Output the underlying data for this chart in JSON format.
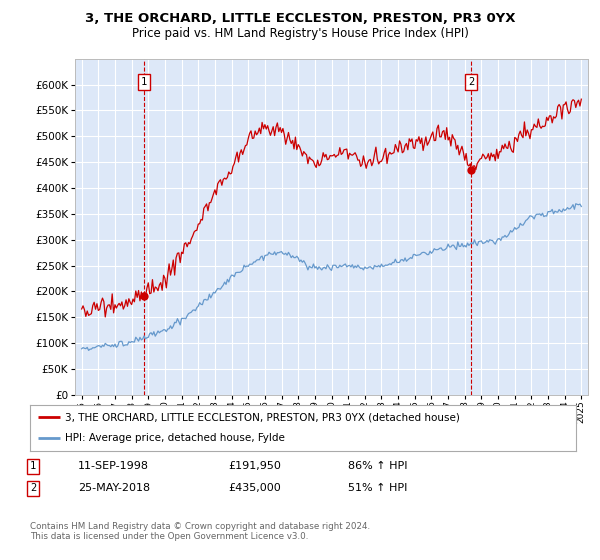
{
  "title": "3, THE ORCHARD, LITTLE ECCLESTON, PRESTON, PR3 0YX",
  "subtitle": "Price paid vs. HM Land Registry's House Price Index (HPI)",
  "background_color": "#ffffff",
  "plot_bg_color": "#dde8f8",
  "grid_color": "#ffffff",
  "line1_color": "#cc0000",
  "line2_color": "#6699cc",
  "legend1": "3, THE ORCHARD, LITTLE ECCLESTON, PRESTON, PR3 0YX (detached house)",
  "legend2": "HPI: Average price, detached house, Fylde",
  "footnote": "Contains HM Land Registry data © Crown copyright and database right 2024.\nThis data is licensed under the Open Government Licence v3.0.",
  "marker1": {
    "date_idx": 1998.75,
    "value": 191950,
    "label": "1",
    "date_str": "11-SEP-1998",
    "price_str": "£191,950",
    "hpi_str": "86% ↑ HPI"
  },
  "marker2": {
    "date_idx": 2018.38,
    "value": 435000,
    "label": "2",
    "date_str": "25-MAY-2018",
    "price_str": "£435,000",
    "hpi_str": "51% ↑ HPI"
  },
  "ylim": [
    0,
    650000
  ],
  "xlim": [
    1994.6,
    2025.4
  ],
  "yticks": [
    0,
    50000,
    100000,
    150000,
    200000,
    250000,
    300000,
    350000,
    400000,
    450000,
    500000,
    550000,
    600000
  ],
  "xticks": [
    1995,
    1996,
    1997,
    1998,
    1999,
    2000,
    2001,
    2002,
    2003,
    2004,
    2005,
    2006,
    2007,
    2008,
    2009,
    2010,
    2011,
    2012,
    2013,
    2014,
    2015,
    2016,
    2017,
    2018,
    2019,
    2020,
    2021,
    2022,
    2023,
    2024,
    2025
  ],
  "hpi_keypoints_t": [
    1995,
    1996,
    1997,
    1998,
    1999,
    2000,
    2001,
    2002,
    2003,
    2004,
    2005,
    2006,
    2007,
    2008,
    2009,
    2010,
    2011,
    2012,
    2013,
    2014,
    2015,
    2016,
    2017,
    2018,
    2019,
    2020,
    2021,
    2022,
    2023,
    2024,
    2025
  ],
  "hpi_keypoints_v": [
    90000,
    93000,
    97000,
    103000,
    112000,
    125000,
    145000,
    170000,
    200000,
    225000,
    250000,
    270000,
    278000,
    262000,
    245000,
    248000,
    250000,
    245000,
    248000,
    258000,
    268000,
    278000,
    285000,
    290000,
    295000,
    298000,
    320000,
    345000,
    352000,
    358000,
    368000
  ],
  "red_keypoints_t": [
    1995,
    1996,
    1997,
    1998,
    1998.75,
    1999,
    2000,
    2001,
    2002,
    2003,
    2004,
    2005,
    2006,
    2007,
    2008,
    2009,
    2010,
    2011,
    2012,
    2013,
    2014,
    2015,
    2016,
    2017,
    2018,
    2018.38,
    2019,
    2020,
    2021,
    2022,
    2023,
    2024,
    2025
  ],
  "red_keypoints_v": [
    163000,
    168000,
    175000,
    185000,
    191950,
    200000,
    225000,
    270000,
    330000,
    390000,
    440000,
    490000,
    520000,
    510000,
    480000,
    450000,
    460000,
    470000,
    450000,
    458000,
    475000,
    490000,
    498000,
    505000,
    460000,
    435000,
    455000,
    468000,
    490000,
    515000,
    535000,
    555000,
    565000
  ],
  "red_noise_scale": 8000,
  "hpi_noise_scale": 3000,
  "random_seed": 15
}
